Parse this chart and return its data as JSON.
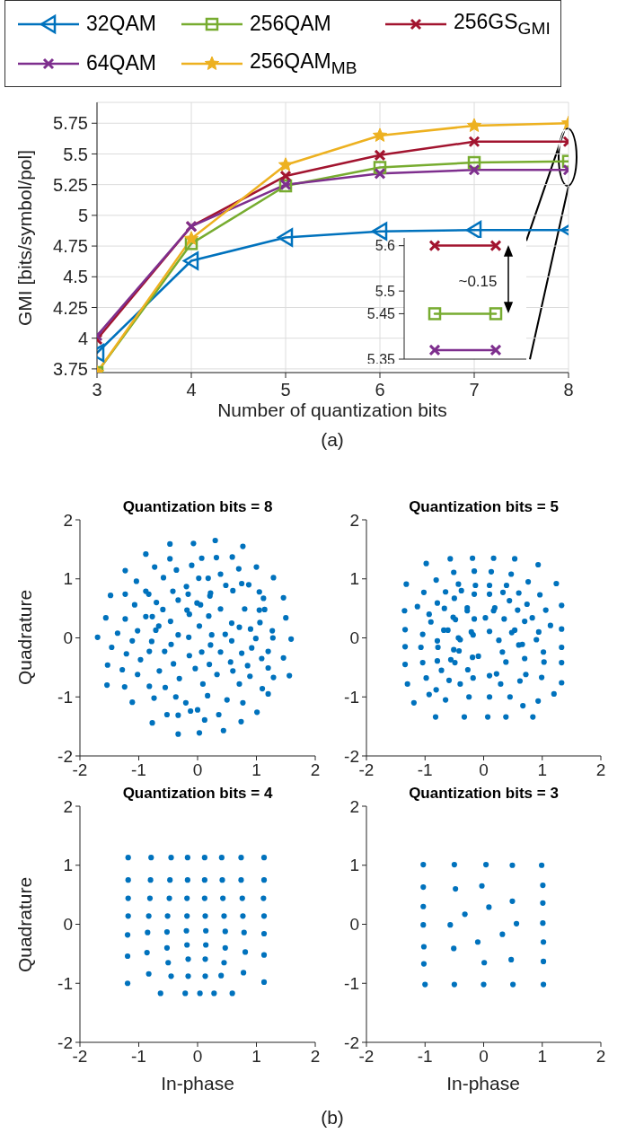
{
  "chart_data": [
    {
      "type": "line",
      "xlabel": "Number of quantization bits",
      "ylabel": "GMI [bits/symbol/pol]",
      "x": [
        3,
        4,
        5,
        6,
        7,
        8
      ],
      "xlim": [
        3,
        8
      ],
      "xticks": [
        3,
        4,
        5,
        6,
        7,
        8
      ],
      "ylim": [
        3.72,
        5.92
      ],
      "yticks": [
        3.75,
        4,
        4.25,
        4.5,
        4.75,
        5,
        5.25,
        5.5,
        5.75
      ],
      "grid": true,
      "legend": "top",
      "line_style": "solid",
      "annotations": [
        "(a)"
      ],
      "series": [
        {
          "name": "32QAM",
          "color": "#0072bd",
          "marker": "triangle",
          "values": [
            3.88,
            4.63,
            4.82,
            4.87,
            4.88,
            4.88
          ]
        },
        {
          "name": "256QAM",
          "color": "#77ac30",
          "marker": "square",
          "values": [
            3.72,
            4.77,
            5.24,
            5.39,
            5.43,
            5.44
          ]
        },
        {
          "name": "256GS$_{GMI}$",
          "color": "#a2142f",
          "marker": "cross",
          "values": [
            3.99,
            4.91,
            5.32,
            5.49,
            5.6,
            5.6
          ]
        },
        {
          "name": "64QAM",
          "color": "#7e2f8e",
          "marker": "cross",
          "values": [
            4.02,
            4.91,
            5.25,
            5.34,
            5.37,
            5.37
          ]
        },
        {
          "name": "256QAM$_{MB}$",
          "color": "#edb120",
          "marker": "star",
          "values": [
            3.72,
            4.81,
            5.41,
            5.65,
            5.73,
            5.75
          ]
        }
      ]
    },
    {
      "type": "line",
      "categories": [
        null,
        null
      ],
      "ylim": [
        5.35,
        5.617
      ],
      "yticks": [
        5.35,
        5.45,
        5.5,
        5.6
      ],
      "tick_labels": "y",
      "line_style": "solid",
      "annotations": [
        "~0.15"
      ],
      "series": [
        {
          "color": "#a2142f",
          "marker": "cross",
          "values": [
            5.6,
            5.6
          ]
        },
        {
          "color": "#77ac30",
          "marker": "square",
          "values": [
            5.45,
            5.45
          ]
        },
        {
          "color": "#7e2f8e",
          "marker": "cross",
          "values": [
            5.37,
            5.37
          ]
        }
      ]
    },
    {
      "type": "scatter",
      "title": "Quantization bits = 8",
      "ylabel": "Quadrature",
      "xlim": [
        -2,
        2
      ],
      "ylim": [
        -2,
        2
      ],
      "xticks": [
        -2,
        -1,
        0,
        1,
        2
      ],
      "yticks": [
        -2,
        -1,
        0,
        1,
        2
      ],
      "color": "#0072bd",
      "x": [
        0.3,
        -0.07,
        -0.47,
        0.77,
        -0.88,
        -0.47,
        0.07,
        0.32,
        0.59,
        -1.23,
        -0.73,
        -0.36,
        -0.1,
        0.7,
        1.0,
        -0.58,
        0.02,
        0.18,
        0.39,
        1.29,
        -1.04,
        -0.42,
        -0.19,
        0.22,
        0.48,
        0.75,
        0.87,
        -1.48,
        -1.23,
        -0.88,
        -0.83,
        -0.33,
        -0.16,
        0.6,
        1.05,
        1.12,
        1.46,
        -1.07,
        -0.7,
        -0.01,
        0.21,
        -1.56,
        -1.23,
        -0.88,
        -0.77,
        -0.59,
        -0.18,
        0.05,
        0.39,
        0.8,
        1.05,
        1.14,
        1.5,
        -1.02,
        -0.66,
        -0.46,
        -0.14,
        0.19,
        0.58,
        1.06,
        1.27,
        -1.7,
        -1.36,
        -0.71,
        -0.33,
        0.03,
        0.24,
        0.47,
        0.71,
        0.9,
        1.59,
        -1.11,
        -0.78,
        -0.15,
        0.22,
        0.58,
        0.99,
        1.28,
        -1.46,
        -1.21,
        -0.82,
        -0.45,
        -0.14,
        0.07,
        0.39,
        0.75,
        0.92,
        1.2,
        -1.53,
        -0.97,
        -0.56,
        -0.41,
        -0.04,
        0.2,
        0.56,
        0.85,
        1.09,
        1.46,
        -1.28,
        -1.02,
        -0.65,
        -0.31,
        0.33,
        0.6,
        0.89,
        1.2,
        1.29,
        1.56,
        -1.54,
        -1.24,
        -0.82,
        -0.55,
        0.09,
        0.71,
        1.1,
        -1.11,
        -0.74,
        -0.37,
        -0.2,
        0.17,
        0.5,
        0.77,
        1.2,
        -0.77,
        -0.52,
        -0.33,
        -0.12,
        0.0,
        0.12,
        0.36,
        0.74,
        1.01,
        -0.33,
        0.03,
        0.44
      ],
      "values": [
        1.65,
        1.6,
        1.59,
        1.55,
        1.42,
        1.34,
        1.35,
        1.36,
        1.37,
        1.14,
        1.2,
        1.15,
        1.23,
        1.17,
        1.2,
        1.02,
        1.01,
        1.01,
        1.08,
        1.02,
        0.96,
        0.79,
        0.87,
        0.76,
        0.89,
        0.92,
        0.9,
        0.72,
        0.74,
        0.79,
        0.74,
        0.64,
        0.74,
        0.8,
        0.78,
        0.67,
        0.68,
        0.56,
        0.6,
        0.59,
        0.71,
        0.34,
        0.32,
        0.36,
        0.36,
        0.48,
        0.47,
        0.56,
        0.49,
        0.49,
        0.47,
        0.48,
        0.34,
        0.12,
        0.2,
        0.28,
        0.4,
        0.37,
        0.25,
        0.26,
        0.12,
        0.01,
        0.08,
        0.13,
        0.05,
        0.2,
        0.05,
        0.06,
        0.18,
        0.15,
        -0.02,
        -0.05,
        -0.06,
        0.01,
        -0.12,
        -0.05,
        -0.01,
        0.0,
        -0.16,
        -0.27,
        -0.23,
        -0.11,
        -0.3,
        -0.24,
        -0.24,
        -0.26,
        -0.17,
        -0.23,
        -0.46,
        -0.37,
        -0.23,
        -0.44,
        -0.52,
        -0.45,
        -0.41,
        -0.47,
        -0.35,
        -0.34,
        -0.54,
        -0.62,
        -0.56,
        -0.69,
        -0.62,
        -0.56,
        -0.65,
        -0.51,
        -0.67,
        -0.64,
        -0.8,
        -0.83,
        -0.82,
        -0.84,
        -0.78,
        -0.78,
        -0.86,
        -1.09,
        -1.02,
        -1.0,
        -1.1,
        -0.98,
        -1.05,
        -1.1,
        -0.95,
        -1.44,
        -1.3,
        -1.31,
        -1.24,
        -1.22,
        -1.39,
        -1.3,
        -1.42,
        -1.26,
        -1.63,
        -1.61,
        -1.57
      ]
    },
    {
      "type": "scatter",
      "title": "Quantization bits = 5",
      "xlim": [
        -2,
        2
      ],
      "ylim": [
        -2,
        2
      ],
      "xticks": [
        -2,
        -1,
        0,
        1,
        2
      ],
      "yticks": [
        -2,
        -1,
        0,
        1,
        2
      ],
      "color": "#0072bd",
      "x": [
        -0.98,
        -0.57,
        -0.19,
        0.17,
        0.53,
        0.93,
        -0.81,
        -0.51,
        -0.16,
        0.13,
        0.47,
        -1.32,
        -1.02,
        -0.65,
        -0.43,
        -0.38,
        -0.14,
        0.1,
        0.39,
        0.76,
        1.24,
        -0.16,
        0.1,
        0.33,
        0.6,
        0.96,
        -1.35,
        -1.13,
        -0.79,
        -0.5,
        -0.67,
        -0.28,
        0.19,
        0.44,
        0.58,
        0.74,
        1.06,
        1.33,
        -0.93,
        -0.9,
        -0.52,
        -0.48,
        -0.28,
        -0.16,
        0.03,
        0.17,
        0.35,
        0.7,
        0.83,
        1.14,
        -1.34,
        -1.04,
        -0.68,
        -0.61,
        -0.43,
        -0.4,
        -0.21,
        -0.18,
        0.1,
        0.48,
        0.53,
        0.94,
        1.33,
        -0.79,
        0.26,
        0.9,
        -1.34,
        -1.07,
        -0.78,
        -0.51,
        -0.42,
        0.32,
        0.6,
        0.66,
        1.02,
        1.33,
        -1.34,
        -1.04,
        -0.79,
        -0.56,
        -0.49,
        -0.19,
        -0.09,
        0.38,
        0.7,
        1.03,
        1.33,
        -0.72,
        -0.27,
        0.1,
        0.22,
        0.72,
        -1.3,
        -0.98,
        -0.59,
        -0.4,
        -0.18,
        0.29,
        0.62,
        0.99,
        1.33,
        -0.81,
        -1.19,
        -0.93,
        -0.65,
        -0.25,
        0.1,
        0.45,
        0.67,
        0.93,
        1.2,
        -0.82,
        -0.33,
        0.07,
        0.38,
        0.84
      ],
      "values": [
        1.26,
        1.34,
        1.35,
        1.35,
        1.34,
        1.24,
        0.98,
        1.11,
        1.13,
        1.12,
        1.08,
        0.91,
        0.77,
        0.78,
        0.91,
        0.8,
        0.89,
        0.89,
        0.89,
        0.95,
        0.92,
        0.74,
        0.74,
        0.77,
        0.76,
        0.73,
        0.46,
        0.53,
        0.59,
        0.67,
        0.5,
        0.51,
        0.51,
        0.63,
        0.47,
        0.57,
        0.47,
        0.55,
        0.4,
        0.27,
        0.35,
        0.31,
        0.46,
        0.32,
        0.34,
        0.46,
        0.32,
        0.28,
        0.34,
        0.21,
        0.14,
        0.06,
        0.13,
        0.13,
        0.0,
        -0.03,
        0.1,
        0.05,
        0.11,
        0.09,
        0.13,
        0.1,
        0.15,
        -0.05,
        -0.04,
        -0.03,
        -0.15,
        -0.16,
        -0.16,
        -0.2,
        -0.22,
        -0.24,
        -0.12,
        -0.11,
        -0.24,
        -0.16,
        -0.45,
        -0.42,
        -0.39,
        -0.37,
        -0.42,
        -0.33,
        -0.31,
        -0.41,
        -0.35,
        -0.41,
        -0.42,
        -0.55,
        -0.54,
        -0.64,
        -0.61,
        -0.62,
        -0.78,
        -0.68,
        -0.72,
        -0.78,
        -0.68,
        -0.78,
        -0.73,
        -0.67,
        -0.76,
        -0.88,
        -1.1,
        -0.96,
        -1.05,
        -1.0,
        -1.0,
        -1.0,
        -1.15,
        -1.07,
        -0.95,
        -1.34,
        -1.34,
        -1.34,
        -1.34,
        -1.34
      ]
    },
    {
      "type": "scatter",
      "title": "Quantization bits = 4",
      "xlabel": "In-phase",
      "ylabel": "Quadrature",
      "xlim": [
        -2,
        2
      ],
      "ylim": [
        -2,
        2
      ],
      "xticks": [
        -2,
        -1,
        0,
        1,
        2
      ],
      "yticks": [
        -2,
        -1,
        0,
        1,
        2
      ],
      "color": "#0072bd",
      "x": [
        -1.18,
        -0.79,
        -0.45,
        -0.17,
        0.12,
        0.41,
        0.74,
        1.13,
        -1.18,
        -0.8,
        -0.47,
        -0.17,
        0.12,
        0.42,
        0.74,
        1.13,
        -1.18,
        -0.81,
        -0.48,
        -0.18,
        0.12,
        0.43,
        0.76,
        1.12,
        -1.18,
        -0.83,
        -0.51,
        -0.18,
        0.13,
        0.45,
        0.77,
        1.13,
        -1.19,
        -0.85,
        -0.52,
        -0.19,
        0.14,
        0.47,
        0.79,
        1.13,
        -1.19,
        -0.86,
        -0.52,
        -0.18,
        0.14,
        0.47,
        0.81,
        1.13,
        -0.5,
        -0.16,
        0.13,
        0.45,
        -0.83,
        -0.45,
        -0.16,
        0.13,
        0.4,
        0.78,
        -0.63,
        -0.21,
        0.04,
        0.28,
        0.59,
        -1.19,
        1.13
      ],
      "values": [
        1.13,
        1.13,
        1.13,
        1.13,
        1.13,
        1.13,
        1.13,
        1.13,
        0.75,
        0.75,
        0.75,
        0.75,
        0.75,
        0.75,
        0.75,
        0.75,
        0.44,
        0.44,
        0.44,
        0.44,
        0.44,
        0.44,
        0.44,
        0.44,
        0.14,
        0.14,
        0.14,
        0.14,
        0.14,
        0.14,
        0.14,
        0.14,
        -0.18,
        -0.14,
        -0.13,
        -0.11,
        -0.11,
        -0.12,
        -0.14,
        -0.16,
        -0.54,
        -0.48,
        -0.4,
        -0.35,
        -0.35,
        -0.4,
        -0.47,
        -0.52,
        -0.65,
        -0.59,
        -0.59,
        -0.65,
        -0.84,
        -0.88,
        -0.88,
        -0.88,
        -0.87,
        -0.82,
        -1.17,
        -1.17,
        -1.17,
        -1.17,
        -1.17,
        -1.0,
        -0.98
      ]
    },
    {
      "type": "scatter",
      "title": "Quantization bits = 3",
      "xlabel": "In-phase",
      "xlim": [
        -2,
        2
      ],
      "ylim": [
        -2,
        2
      ],
      "xticks": [
        -2,
        -1,
        0,
        1,
        2
      ],
      "yticks": [
        -2,
        -1,
        0,
        1,
        2
      ],
      "color": "#0072bd",
      "annotations": [
        "(b)"
      ],
      "x": [
        -1.03,
        -0.5,
        0.04,
        0.49,
        0.99,
        -1.03,
        -0.48,
        -0.03,
        1.01,
        -1.03,
        0.09,
        0.49,
        1.01,
        -0.32,
        -1.03,
        -0.57,
        0.56,
        1.01,
        0.32,
        -0.1,
        -1.02,
        -0.51,
        1.02,
        -1.02,
        0.01,
        0.47,
        1.02,
        -1.0,
        -0.5,
        0.0,
        0.5,
        1.02
      ],
      "values": [
        1.01,
        1.01,
        1.01,
        1.0,
        1.0,
        0.63,
        0.6,
        0.65,
        0.66,
        0.3,
        0.29,
        0.39,
        0.36,
        0.17,
        -0.01,
        -0.01,
        0.01,
        0.02,
        -0.17,
        -0.3,
        -0.38,
        -0.41,
        -0.3,
        -0.67,
        -0.65,
        -0.6,
        -0.63,
        -1.02,
        -1.02,
        -1.02,
        -1.02,
        -1.02
      ]
    }
  ]
}
